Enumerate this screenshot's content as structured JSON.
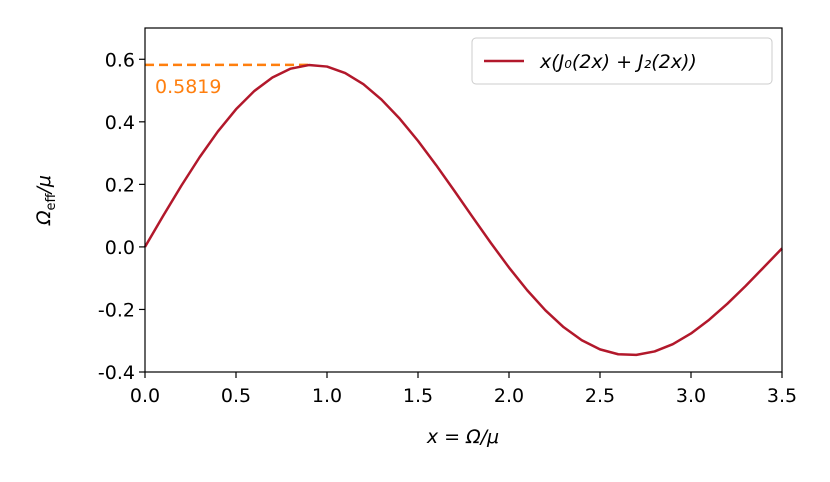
{
  "chart_data": {
    "type": "line",
    "xlabel": "x = Ω/μ",
    "ylabel": {
      "main": "Ω",
      "sub": "eff",
      "rest": "/μ"
    },
    "x": [
      0,
      0.1,
      0.2,
      0.3,
      0.4,
      0.5,
      0.6,
      0.7,
      0.8,
      0.9,
      1.0,
      1.1,
      1.2,
      1.3,
      1.4,
      1.5,
      1.6,
      1.7,
      1.8,
      1.9,
      2.0,
      2.1,
      2.2,
      2.3,
      2.4,
      2.5,
      2.6,
      2.7,
      2.8,
      2.9,
      3.0,
      3.1,
      3.2,
      3.3,
      3.4,
      3.5
    ],
    "series": [
      {
        "name": "x(J₀(2x) + J₂(2x))",
        "color": "#b2182b",
        "values": [
          0,
          0.0995,
          0.196,
          0.2867,
          0.3688,
          0.4401,
          0.4983,
          0.5419,
          0.5699,
          0.5815,
          0.5767,
          0.556,
          0.5202,
          0.4708,
          0.4097,
          0.3391,
          0.2613,
          0.1792,
          0.0955,
          0.0128,
          -0.066,
          -0.1386,
          -0.2028,
          -0.2566,
          -0.2985,
          -0.3276,
          -0.3432,
          -0.3453,
          -0.3343,
          -0.311,
          -0.2767,
          -0.2329,
          -0.1816,
          -0.125,
          -0.0652,
          -0.0047
        ]
      }
    ],
    "annotation": {
      "y": 0.5819,
      "x_end": 0.92,
      "color": "#ff7f0e"
    },
    "xlim": [
      0,
      3.5
    ],
    "xticks": [
      {
        "value": 0,
        "label": "0.0"
      },
      0.5,
      {
        "value": 1,
        "label": "1.0"
      },
      1.5,
      {
        "value": 2,
        "label": "2.0"
      },
      2.5,
      {
        "value": 3,
        "label": "3.0"
      },
      3.5
    ],
    "ylim": [
      -0.4,
      0.7
    ],
    "yticks": [
      -0.4,
      -0.2,
      {
        "value": 0,
        "label": "0.0"
      },
      0.2,
      0.4,
      0.6
    ],
    "legend": "upper right"
  }
}
